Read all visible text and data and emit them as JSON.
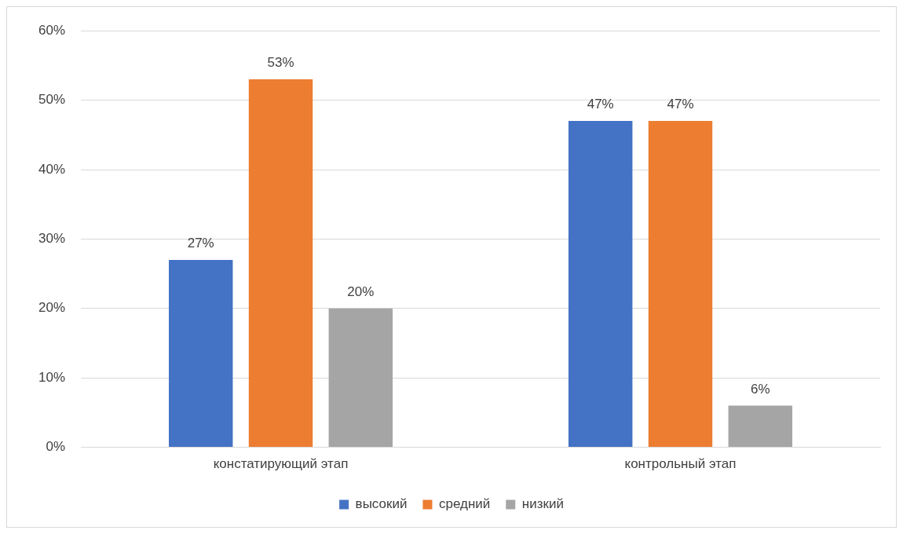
{
  "chart_data": {
    "type": "bar",
    "categories": [
      "констатирующий этап",
      "контрольный этап"
    ],
    "series": [
      {
        "name": "высокий",
        "color": "#4472c4",
        "values": [
          27,
          47
        ],
        "value_labels": [
          "27%",
          "47%"
        ]
      },
      {
        "name": "средний",
        "color": "#ed7d31",
        "values": [
          53,
          47
        ],
        "value_labels": [
          "53%",
          "47%"
        ]
      },
      {
        "name": "низкий",
        "color": "#a5a5a5",
        "values": [
          20,
          6
        ],
        "value_labels": [
          "20%",
          "6%"
        ]
      }
    ],
    "ylim": [
      0,
      60
    ],
    "yticks": [
      {
        "value": 0,
        "label": "0%"
      },
      {
        "value": 10,
        "label": "10%"
      },
      {
        "value": 20,
        "label": "20%"
      },
      {
        "value": 30,
        "label": "30%"
      },
      {
        "value": 40,
        "label": "40%"
      },
      {
        "value": 50,
        "label": "50%"
      },
      {
        "value": 60,
        "label": "60%"
      }
    ],
    "grid": "y",
    "legend": "bottom"
  }
}
